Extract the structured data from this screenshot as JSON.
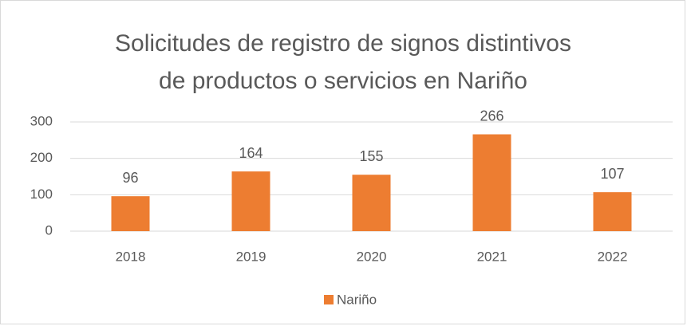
{
  "chart_data": {
    "type": "bar",
    "title": [
      "Solicitudes de registro de signos distintivos",
      "de productos o servicios en Nariño"
    ],
    "categories": [
      "2018",
      "2019",
      "2020",
      "2021",
      "2022"
    ],
    "series": [
      {
        "name": "Nariño",
        "color": "#ed7d31",
        "values": [
          96,
          164,
          155,
          266,
          107
        ]
      }
    ],
    "ylim": [
      0,
      300
    ],
    "yticks": [
      0,
      100,
      200,
      300
    ],
    "grid": true,
    "legend": "bottom",
    "data_labels": true
  }
}
